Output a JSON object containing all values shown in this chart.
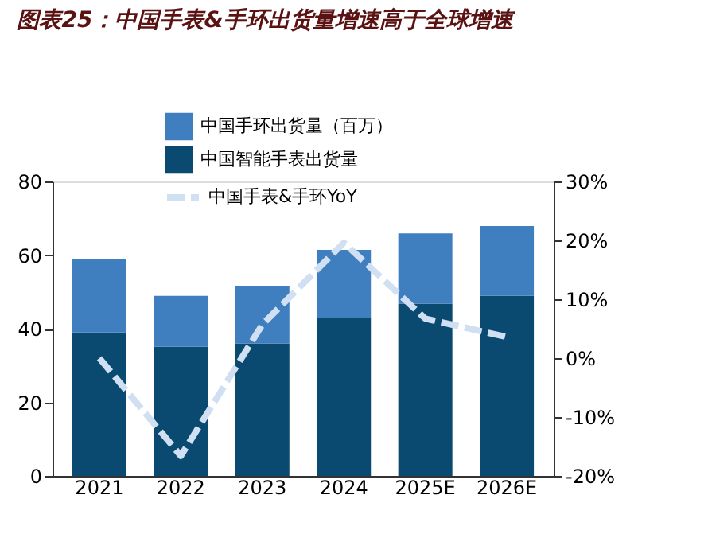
{
  "chart_data": {
    "type": "bar",
    "title": "图表25：中国手表&手环出货量增速高于全球增速",
    "categories": [
      "2021",
      "2022",
      "2023",
      "2024",
      "2025E",
      "2026E"
    ],
    "stacked": true,
    "series": [
      {
        "name": "中国智能手表出货量",
        "color": "#0b4a70",
        "values": [
          39.0,
          35.1,
          36.0,
          42.9,
          46.8,
          48.9
        ]
      },
      {
        "name": "中国手环出货量（百万）",
        "color": "#3f7fbf",
        "values": [
          20.0,
          13.8,
          15.7,
          18.5,
          19.1,
          19.0
        ]
      },
      {
        "name": "中国手表&手环YoY",
        "type": "line",
        "axis": "y2",
        "color": "#d0e0f2",
        "line_style": "dashed",
        "values": [
          0.0,
          -16.6,
          5.7,
          19.6,
          6.7,
          3.6
        ]
      }
    ],
    "ylim": [
      0,
      80
    ],
    "yticks": [
      0,
      20,
      40,
      60,
      80
    ],
    "y2lim": [
      -20,
      30
    ],
    "y2ticks": [
      {
        "value": -20,
        "label": "-20%"
      },
      {
        "value": -10,
        "label": "-10%"
      },
      {
        "value": 0,
        "label": "0%"
      },
      {
        "value": 10,
        "label": "10%"
      },
      {
        "value": 20,
        "label": "20%"
      },
      {
        "value": 30,
        "label": "30%"
      }
    ],
    "legend": "top",
    "grid": false
  }
}
